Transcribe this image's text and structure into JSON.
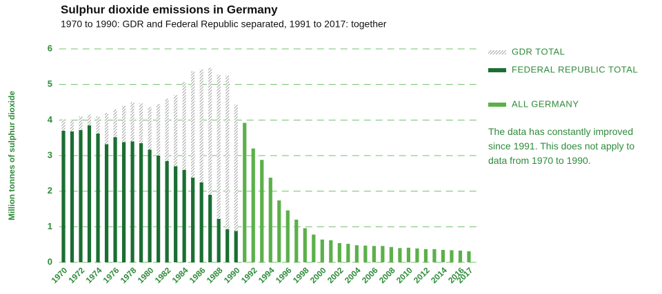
{
  "chart_data": {
    "type": "bar",
    "stacked": true,
    "title": "Sulphur dioxide emissions in Germany",
    "subtitle": "1970 to 1990: GDR and Federal Republic separated, 1991 to 2017: together",
    "y_label": "Million tonnes of sulphur dioxide",
    "note": "The data has constantly improved since 1991. This does not apply to data from 1970 to 1990.",
    "categories": [
      "1970",
      null,
      "1972",
      null,
      "1974",
      null,
      "1976",
      null,
      "1978",
      null,
      "1980",
      null,
      "1982",
      null,
      "1984",
      null,
      "1986",
      null,
      "1988",
      null,
      "1990",
      null,
      "1992",
      null,
      "1994",
      null,
      "1996",
      null,
      "1998",
      null,
      "2000",
      null,
      "2002",
      null,
      "2004",
      null,
      "2006",
      null,
      "2008",
      null,
      "2010",
      null,
      "2012",
      null,
      "2014",
      null,
      "2016",
      "2017"
    ],
    "series": [
      {
        "name": "GDR TOTAL",
        "color": "#8a8a8a",
        "hatched": true,
        "values": [
          0.32,
          0.32,
          0.38,
          0.3,
          0.48,
          0.88,
          0.78,
          1.02,
          1.1,
          1.12,
          1.2,
          1.45,
          1.75,
          2.0,
          2.47,
          2.99,
          3.17,
          3.57,
          4.05,
          4.32,
          3.55,
          null,
          null,
          null,
          null,
          null,
          null,
          null,
          null,
          null,
          null,
          null,
          null,
          null,
          null,
          null,
          null,
          null,
          null,
          null,
          null,
          null,
          null,
          null,
          null,
          null,
          null,
          null
        ]
      },
      {
        "name": "FEDERAL REPUBLIC TOTAL",
        "color": "#1b6e33",
        "values": [
          3.7,
          3.68,
          3.72,
          3.85,
          3.62,
          3.32,
          3.52,
          3.38,
          3.4,
          3.35,
          3.17,
          3.0,
          2.85,
          2.7,
          2.6,
          2.38,
          2.25,
          1.9,
          1.22,
          0.93,
          0.88,
          null,
          null,
          null,
          null,
          null,
          null,
          null,
          null,
          null,
          null,
          null,
          null,
          null,
          null,
          null,
          null,
          null,
          null,
          null,
          null,
          null,
          null,
          null,
          null,
          null,
          null,
          null
        ]
      },
      {
        "name": "ALL GERMANY",
        "color": "#5cb04a",
        "values": [
          null,
          null,
          null,
          null,
          null,
          null,
          null,
          null,
          null,
          null,
          null,
          null,
          null,
          null,
          null,
          null,
          null,
          null,
          null,
          null,
          null,
          3.92,
          3.2,
          2.88,
          2.38,
          1.74,
          1.46,
          1.2,
          0.96,
          0.78,
          0.64,
          0.62,
          0.54,
          0.52,
          0.48,
          0.47,
          0.46,
          0.46,
          0.43,
          0.4,
          0.41,
          0.39,
          0.37,
          0.37,
          0.35,
          0.34,
          0.33,
          0.31
        ]
      }
    ],
    "ylim": [
      0,
      6
    ],
    "yticks": [
      0,
      1,
      2,
      3,
      4,
      5,
      6
    ],
    "grid": true,
    "grid_color": "#6fbf6a",
    "legend": "right"
  }
}
